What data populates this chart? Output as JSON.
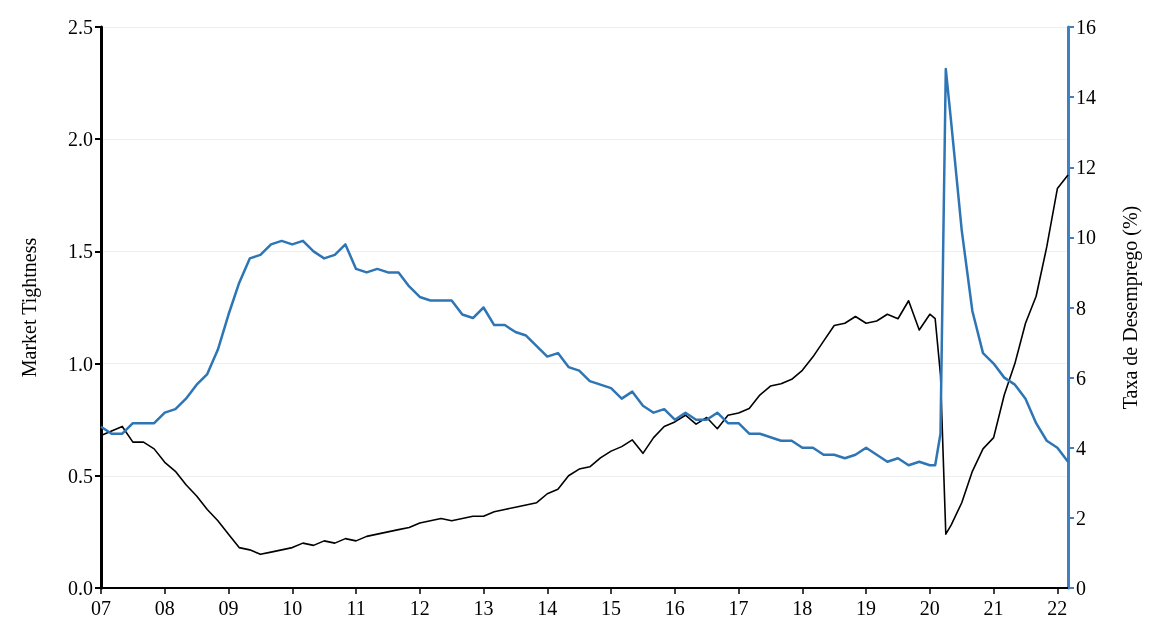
{
  "chart_data": {
    "type": "line",
    "xlabel": null,
    "ylabel": "Market Tightness",
    "y2label": "Taxa de Desemprego (%)",
    "x": [
      "2007-01",
      "2007-03",
      "2007-05",
      "2007-07",
      "2007-09",
      "2007-11",
      "2008-01",
      "2008-03",
      "2008-05",
      "2008-07",
      "2008-09",
      "2008-11",
      "2009-01",
      "2009-03",
      "2009-05",
      "2009-07",
      "2009-09",
      "2009-11",
      "2010-01",
      "2010-03",
      "2010-05",
      "2010-07",
      "2010-09",
      "2010-11",
      "2011-01",
      "2011-03",
      "2011-05",
      "2011-07",
      "2011-09",
      "2011-11",
      "2012-01",
      "2012-03",
      "2012-05",
      "2012-07",
      "2012-09",
      "2012-11",
      "2013-01",
      "2013-03",
      "2013-05",
      "2013-07",
      "2013-09",
      "2013-11",
      "2014-01",
      "2014-03",
      "2014-05",
      "2014-07",
      "2014-09",
      "2014-11",
      "2015-01",
      "2015-03",
      "2015-05",
      "2015-07",
      "2015-09",
      "2015-11",
      "2016-01",
      "2016-03",
      "2016-05",
      "2016-07",
      "2016-09",
      "2016-11",
      "2017-01",
      "2017-03",
      "2017-05",
      "2017-07",
      "2017-09",
      "2017-11",
      "2018-01",
      "2018-03",
      "2018-05",
      "2018-07",
      "2018-09",
      "2018-11",
      "2019-01",
      "2019-03",
      "2019-05",
      "2019-07",
      "2019-09",
      "2019-11",
      "2020-01",
      "2020-02",
      "2020-03",
      "2020-04",
      "2020-05",
      "2020-07",
      "2020-09",
      "2020-11",
      "2021-01",
      "2021-03",
      "2021-05",
      "2021-07",
      "2021-09",
      "2021-11",
      "2022-01",
      "2022-03"
    ],
    "xlim": [
      "2007-01",
      "2022-03"
    ],
    "xticks": [
      {
        "value": "2007-01",
        "label": "07"
      },
      {
        "value": "2008-01",
        "label": "08"
      },
      {
        "value": "2009-01",
        "label": "09"
      },
      {
        "value": "2010-01",
        "label": "10"
      },
      {
        "value": "2011-01",
        "label": "11"
      },
      {
        "value": "2012-01",
        "label": "12"
      },
      {
        "value": "2013-01",
        "label": "13"
      },
      {
        "value": "2014-01",
        "label": "14"
      },
      {
        "value": "2015-01",
        "label": "15"
      },
      {
        "value": "2016-01",
        "label": "16"
      },
      {
        "value": "2017-01",
        "label": "17"
      },
      {
        "value": "2018-01",
        "label": "18"
      },
      {
        "value": "2019-01",
        "label": "19"
      },
      {
        "value": "2020-01",
        "label": "20"
      },
      {
        "value": "2021-01",
        "label": "21"
      },
      {
        "value": "2022-01",
        "label": "22"
      }
    ],
    "ylim": [
      0,
      2.5
    ],
    "yticks": [
      {
        "value": 0,
        "label": "0.0"
      },
      0.5,
      {
        "value": 1,
        "label": "1.0"
      },
      1.5,
      {
        "value": 2,
        "label": "2.0"
      },
      2.5
    ],
    "y2lim": [
      0,
      16
    ],
    "y2ticks": [
      0,
      2,
      4,
      6,
      8,
      10,
      12,
      14,
      16
    ],
    "grid": "y",
    "marker": "none",
    "line_style": "solid",
    "series": [
      {
        "color": "#000000",
        "values": [
          0.68,
          0.7,
          0.72,
          0.65,
          0.65,
          0.62,
          0.56,
          0.52,
          0.46,
          0.41,
          0.35,
          0.3,
          0.24,
          0.18,
          0.17,
          0.15,
          0.16,
          0.17,
          0.18,
          0.2,
          0.19,
          0.21,
          0.2,
          0.22,
          0.21,
          0.23,
          0.24,
          0.25,
          0.26,
          0.27,
          0.29,
          0.3,
          0.31,
          0.3,
          0.31,
          0.32,
          0.32,
          0.34,
          0.35,
          0.36,
          0.37,
          0.38,
          0.42,
          0.44,
          0.5,
          0.53,
          0.54,
          0.58,
          0.61,
          0.63,
          0.66,
          0.6,
          0.67,
          0.72,
          0.74,
          0.77,
          0.73,
          0.76,
          0.71,
          0.77,
          0.78,
          0.8,
          0.86,
          0.9,
          0.91,
          0.93,
          0.97,
          1.03,
          1.1,
          1.17,
          1.18,
          1.21,
          1.18,
          1.19,
          1.22,
          1.2,
          1.28,
          1.15,
          1.22,
          1.2,
          0.95,
          0.24,
          0.28,
          0.38,
          0.52,
          0.62,
          0.67,
          0.86,
          1.0,
          1.18,
          1.3,
          1.52,
          1.78,
          1.84
        ]
      },
      {
        "color": "#2e75b6",
        "axis": "y2",
        "values": [
          4.6,
          4.4,
          4.4,
          4.7,
          4.7,
          4.7,
          5.0,
          5.1,
          5.4,
          5.8,
          6.1,
          6.8,
          7.8,
          8.7,
          9.4,
          9.5,
          9.8,
          9.9,
          9.8,
          9.9,
          9.6,
          9.4,
          9.5,
          9.8,
          9.1,
          9.0,
          9.1,
          9.0,
          9.0,
          8.6,
          8.3,
          8.2,
          8.2,
          8.2,
          7.8,
          7.7,
          8.0,
          7.5,
          7.5,
          7.3,
          7.2,
          6.9,
          6.6,
          6.7,
          6.3,
          6.2,
          5.9,
          5.8,
          5.7,
          5.4,
          5.6,
          5.2,
          5.0,
          5.1,
          4.8,
          5.0,
          4.8,
          4.8,
          5.0,
          4.7,
          4.7,
          4.4,
          4.4,
          4.3,
          4.2,
          4.2,
          4.0,
          4.0,
          3.8,
          3.8,
          3.7,
          3.8,
          4.0,
          3.8,
          3.6,
          3.7,
          3.5,
          3.6,
          3.5,
          3.5,
          4.4,
          14.8,
          13.3,
          10.2,
          7.9,
          6.7,
          6.4,
          6.0,
          5.8,
          5.4,
          4.7,
          4.2,
          4.0,
          3.6
        ]
      }
    ]
  }
}
